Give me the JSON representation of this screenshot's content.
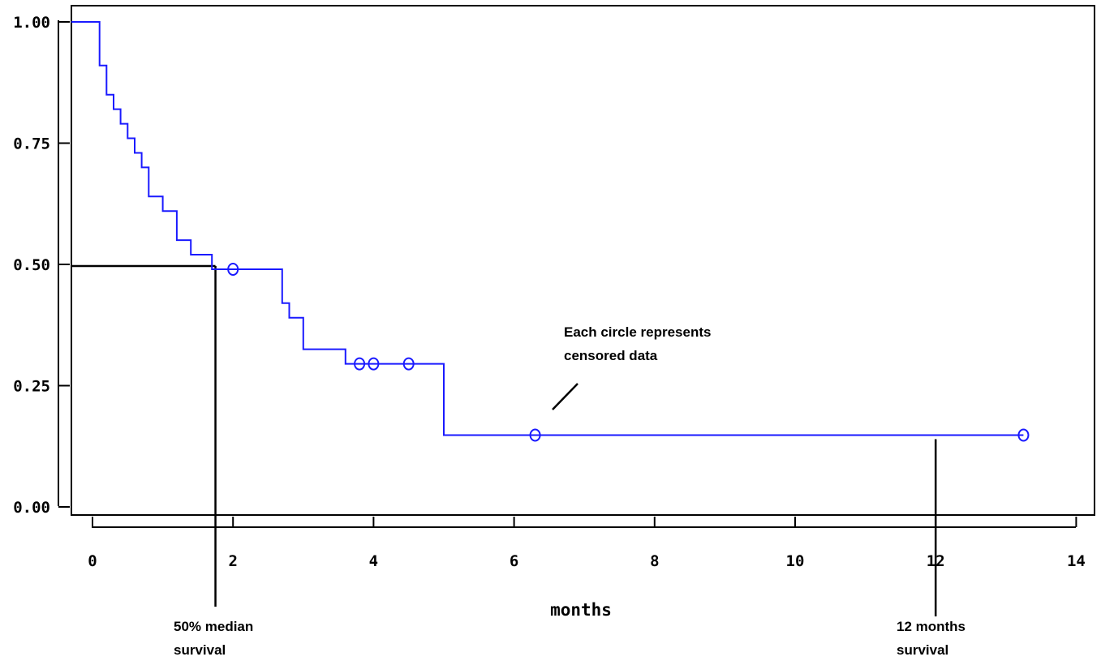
{
  "chart_data": {
    "type": "line",
    "title": "",
    "xlabel": "months",
    "ylabel": "",
    "xlim": [
      -0.3,
      14.1
    ],
    "ylim": [
      -0.02,
      1.0
    ],
    "x_ticks": [
      0,
      2,
      4,
      6,
      8,
      10,
      12,
      14
    ],
    "x_tick_labels": [
      "0",
      "2",
      "4",
      "6",
      "8",
      "10",
      "12",
      "14"
    ],
    "y_ticks": [
      0.0,
      0.25,
      0.5,
      0.75,
      1.0
    ],
    "y_tick_labels": [
      "0.00",
      "0.25",
      "0.50",
      "0.75",
      "1.00"
    ],
    "grid": false,
    "legend": "none",
    "series": [
      {
        "color": "#1a1aff",
        "step_points": [
          [
            -0.3,
            1.0
          ],
          [
            0.1,
            1.0
          ],
          [
            0.1,
            0.91
          ],
          [
            0.2,
            0.91
          ],
          [
            0.2,
            0.85
          ],
          [
            0.3,
            0.85
          ],
          [
            0.3,
            0.82
          ],
          [
            0.4,
            0.82
          ],
          [
            0.4,
            0.79
          ],
          [
            0.5,
            0.79
          ],
          [
            0.5,
            0.76
          ],
          [
            0.6,
            0.76
          ],
          [
            0.6,
            0.73
          ],
          [
            0.7,
            0.73
          ],
          [
            0.7,
            0.7
          ],
          [
            0.8,
            0.7
          ],
          [
            0.8,
            0.64
          ],
          [
            1.0,
            0.64
          ],
          [
            1.0,
            0.61
          ],
          [
            1.2,
            0.61
          ],
          [
            1.2,
            0.55
          ],
          [
            1.4,
            0.55
          ],
          [
            1.4,
            0.52
          ],
          [
            1.7,
            0.52
          ],
          [
            1.7,
            0.49
          ],
          [
            2.7,
            0.49
          ],
          [
            2.7,
            0.42
          ],
          [
            2.8,
            0.42
          ],
          [
            2.8,
            0.39
          ],
          [
            3.0,
            0.39
          ],
          [
            3.0,
            0.325
          ],
          [
            3.6,
            0.325
          ],
          [
            3.6,
            0.295
          ],
          [
            5.0,
            0.295
          ],
          [
            5.0,
            0.148
          ],
          [
            13.25,
            0.148
          ]
        ],
        "censored": [
          [
            2.0,
            0.49
          ],
          [
            3.8,
            0.295
          ],
          [
            4.0,
            0.295
          ],
          [
            4.5,
            0.295
          ],
          [
            6.3,
            0.148
          ],
          [
            13.25,
            0.148
          ]
        ]
      }
    ],
    "reference_lines": [
      {
        "name": "median",
        "x": 1.75,
        "y": 0.49
      },
      {
        "name": "twelve-month",
        "x": 12.0,
        "y": 0.148
      }
    ],
    "annotations": {
      "censor_note": [
        "Each circle represents",
        "censored data"
      ],
      "median_label": [
        "50% median",
        "survival"
      ],
      "twelve_label": [
        "12 months",
        "survival"
      ]
    }
  }
}
